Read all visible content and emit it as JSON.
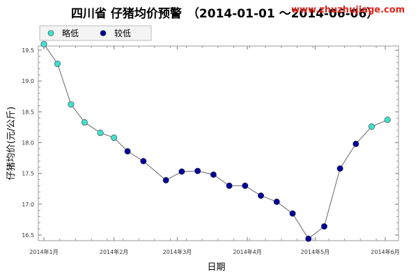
{
  "chart_data": {
    "type": "scatter",
    "title": "四川省 仔猪均价预警",
    "subtitle": "（2014-01-01 ～2014-06-06）",
    "watermark": "www.zhuzhujiage.com",
    "xlabel": "日期",
    "ylabel": "仔猪均价(元/公斤)",
    "ylim": [
      16.5,
      19.5
    ],
    "yticks": [
      16.5,
      17.0,
      17.5,
      18.0,
      18.5,
      19.0,
      19.5
    ],
    "ytick_labels": [
      "16.5",
      "17.0",
      "17.5",
      "18.0",
      "18.5",
      "19.0",
      "19.5"
    ],
    "xlim": [
      "2014-01-01",
      "2014-06-06"
    ],
    "xticks": [
      "2014-01-01",
      "2014-02-01",
      "2014-03-01",
      "2014-04-01",
      "2014-05-01",
      "2014-06-01"
    ],
    "xtick_labels": [
      "2014年1月",
      "2014年2月",
      "2014年3月",
      "2014年4月",
      "2014年5月",
      "2014年6月"
    ],
    "grid": false,
    "line_color": "#666666",
    "legend": [
      {
        "name": "略低",
        "color": "#40e0d0"
      },
      {
        "name": "较低",
        "color": "#000099"
      }
    ],
    "legend_position": "top-left",
    "points": [
      {
        "x": "2014-01-01",
        "y": 19.6,
        "level": "略低"
      },
      {
        "x": "2014-01-07",
        "y": 19.28,
        "level": "略低"
      },
      {
        "x": "2014-01-13",
        "y": 18.62,
        "level": "略低"
      },
      {
        "x": "2014-01-19",
        "y": 18.33,
        "level": "略低"
      },
      {
        "x": "2014-01-26",
        "y": 18.16,
        "level": "略低"
      },
      {
        "x": "2014-02-01",
        "y": 18.08,
        "level": "略低"
      },
      {
        "x": "2014-02-07",
        "y": 17.86,
        "level": "较低"
      },
      {
        "x": "2014-02-14",
        "y": 17.7,
        "level": "较低"
      },
      {
        "x": "2014-02-24",
        "y": 17.39,
        "level": "较低"
      },
      {
        "x": "2014-03-03",
        "y": 17.53,
        "level": "较低"
      },
      {
        "x": "2014-03-10",
        "y": 17.54,
        "level": "较低"
      },
      {
        "x": "2014-03-17",
        "y": 17.48,
        "level": "较低"
      },
      {
        "x": "2014-03-24",
        "y": 17.3,
        "level": "较低"
      },
      {
        "x": "2014-03-31",
        "y": 17.3,
        "level": "较低"
      },
      {
        "x": "2014-04-07",
        "y": 17.14,
        "level": "较低"
      },
      {
        "x": "2014-04-14",
        "y": 17.04,
        "level": "较低"
      },
      {
        "x": "2014-04-21",
        "y": 16.85,
        "level": "较低"
      },
      {
        "x": "2014-04-28",
        "y": 16.44,
        "level": "较低"
      },
      {
        "x": "2014-05-05",
        "y": 16.64,
        "level": "较低"
      },
      {
        "x": "2014-05-12",
        "y": 17.58,
        "level": "较低"
      },
      {
        "x": "2014-05-19",
        "y": 17.98,
        "level": "较低"
      },
      {
        "x": "2014-05-26",
        "y": 18.26,
        "level": "略低"
      },
      {
        "x": "2014-06-02",
        "y": 18.37,
        "level": "略低"
      }
    ]
  }
}
